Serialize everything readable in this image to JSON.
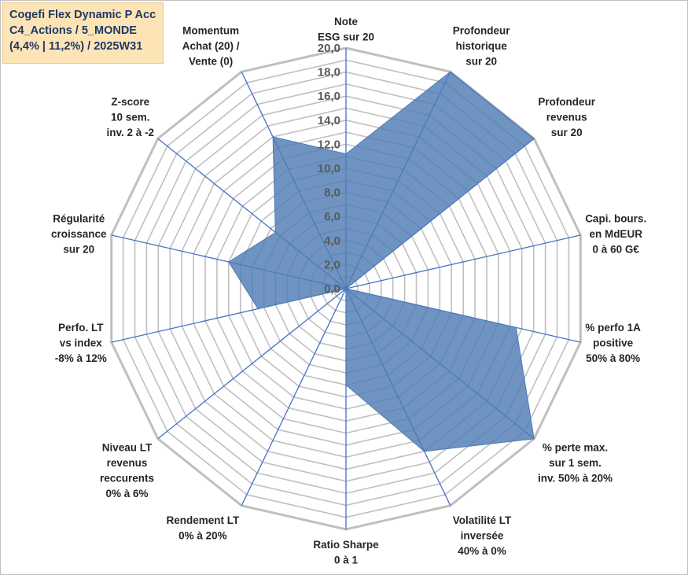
{
  "title_lines": [
    "Cogefi Flex Dynamic P Acc",
    "C4_Actions / 5_MONDE",
    "(4,4% | 11,2%) / 2025W31"
  ],
  "colors": {
    "fill": "#4f7cb4",
    "axis": "#4472c4",
    "grid": "#bfbfbf",
    "title_bg": "#fce4b6",
    "title_text": "#1f3864"
  },
  "chart_data": {
    "type": "radar",
    "r_min": 0,
    "r_max": 20,
    "r_step": 1,
    "tick_labels": [
      "0,0",
      "2,0",
      "4,0",
      "6,0",
      "8,0",
      "10,0",
      "12,0",
      "14,0",
      "16,0",
      "18,0",
      "20,0"
    ],
    "axes": [
      {
        "label": [
          "Note",
          "ESG sur 20"
        ],
        "value": 11.2
      },
      {
        "label": [
          "Profondeur",
          "historique",
          "sur 20"
        ],
        "value": 20.0
      },
      {
        "label": [
          "Profondeur",
          "revenus",
          "sur 20"
        ],
        "value": 20.0
      },
      {
        "label": [
          "Capi. bours.",
          "en MdEUR",
          "0 à 60 G€"
        ],
        "value": 0.0
      },
      {
        "label": [
          "% perfo 1A",
          "positive",
          "50% à 80%"
        ],
        "value": 14.5
      },
      {
        "label": [
          "% perte max.",
          "sur 1 sem.",
          "inv. 50% à 20%"
        ],
        "value": 20.0
      },
      {
        "label": [
          "Volatilité LT",
          "inversée",
          "40% à 0%"
        ],
        "value": 15.0
      },
      {
        "label": [
          "Ratio Sharpe",
          "0 à 1"
        ],
        "value": 8.0
      },
      {
        "label": [
          "Rendement LT",
          "0% à 20%"
        ],
        "value": 0.0
      },
      {
        "label": [
          "Niveau LT",
          "revenus",
          "reccurents",
          "0% à 6%"
        ],
        "value": 0.0
      },
      {
        "label": [
          "Perfo. LT",
          "vs index",
          "-8% à 12%"
        ],
        "value": 7.5
      },
      {
        "label": [
          "Régularité",
          "croissance",
          "sur 20"
        ],
        "value": 10.0
      },
      {
        "label": [
          "Z-score",
          "10 sem.",
          "inv. 2 à -2"
        ],
        "value": 7.5
      },
      {
        "label": [
          "Momentum",
          "Achat (20) /",
          "Vente (0)"
        ],
        "value": 14.0
      }
    ]
  }
}
